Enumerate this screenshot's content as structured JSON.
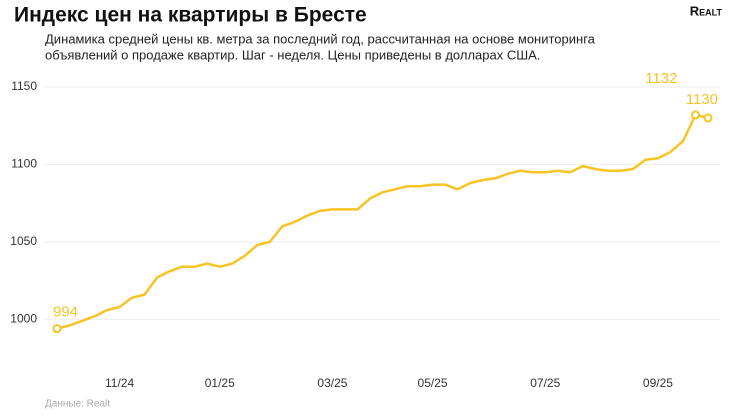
{
  "chart_data": {
    "type": "line",
    "title": "Индекс цен на квартиры в Бресте",
    "subtitle": [
      "Динамика средней цены кв. метра за последний год, рассчитанная на основе мониторинга",
      "объявлений о продаже квартир. Шаг - неделя. Цены приведены в долларах США."
    ],
    "source": "Данные: Realt",
    "logo": "Realt",
    "categories": [
      null,
      null,
      null,
      null,
      null,
      "11/24",
      null,
      null,
      null,
      null,
      null,
      null,
      null,
      "01/25",
      null,
      null,
      null,
      null,
      null,
      null,
      null,
      null,
      "03/25",
      null,
      null,
      null,
      null,
      null,
      null,
      null,
      "05/25",
      null,
      null,
      null,
      null,
      null,
      null,
      null,
      null,
      "07/25",
      null,
      null,
      null,
      null,
      null,
      null,
      null,
      null,
      "09/25",
      null,
      null,
      null,
      null
    ],
    "values": [
      994,
      996,
      999,
      1002,
      1006,
      1008,
      1014,
      1016,
      1027,
      1031,
      1034,
      1034,
      1036,
      1034,
      1036,
      1041,
      1048,
      1050,
      1060,
      1063,
      1067,
      1070,
      1071,
      1071,
      1071,
      1078,
      1082,
      1084,
      1086,
      1086,
      1087,
      1087,
      1084,
      1088,
      1090,
      1091,
      1094,
      1096,
      1095,
      1095,
      1096,
      1095,
      1099,
      1097,
      1096,
      1096,
      1097,
      1103,
      1104,
      1108,
      1115,
      1132,
      1130
    ],
    "color": "#f7c325",
    "ylim": [
      966,
      1161
    ],
    "yticks": [
      1000,
      1050,
      1100,
      1150
    ],
    "grid": true
  }
}
